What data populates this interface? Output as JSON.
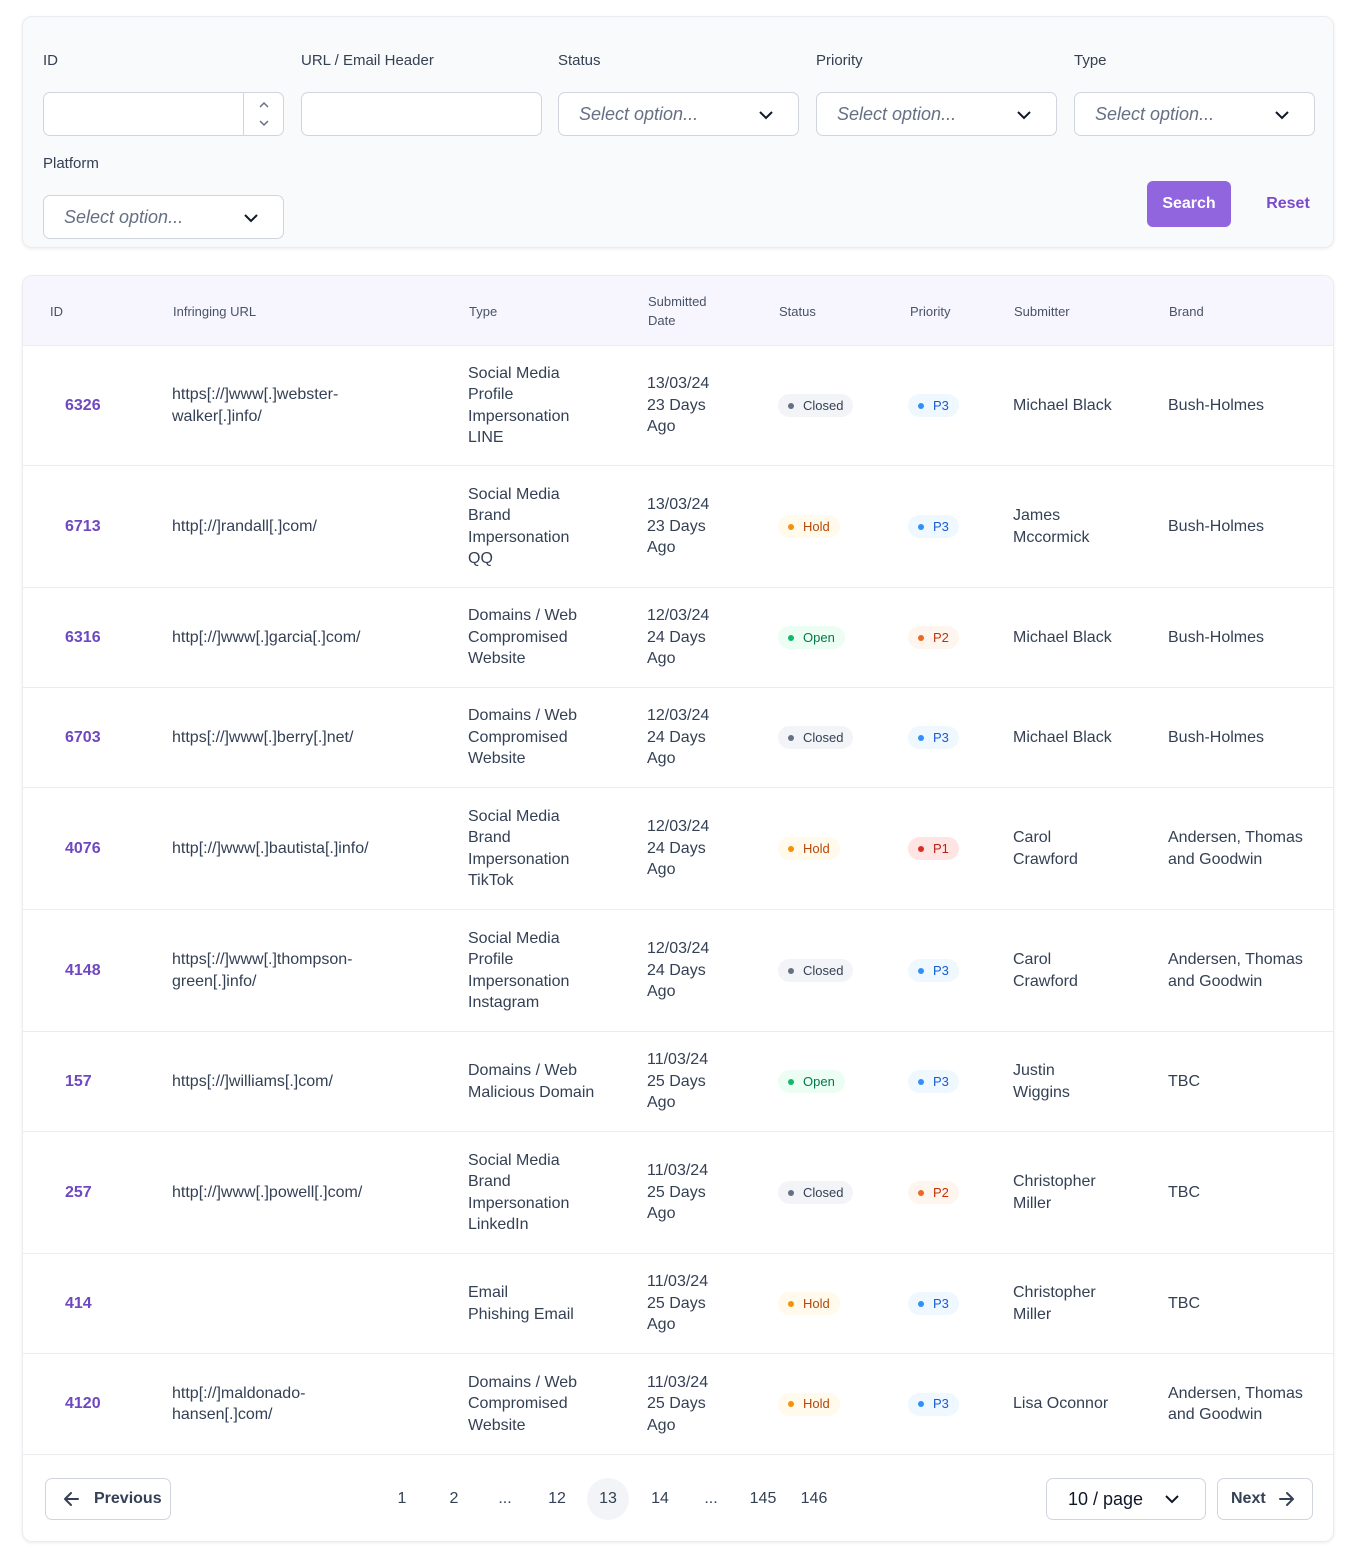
{
  "filters": {
    "id": {
      "label": "ID",
      "value": ""
    },
    "url": {
      "label": "URL / Email Header",
      "value": ""
    },
    "status": {
      "label": "Status",
      "placeholder": "Select option..."
    },
    "priority": {
      "label": "Priority",
      "placeholder": "Select option..."
    },
    "type": {
      "label": "Type",
      "placeholder": "Select option..."
    },
    "platform": {
      "label": "Platform",
      "placeholder": "Select option..."
    },
    "search_label": "Search",
    "reset_label": "Reset"
  },
  "table": {
    "headers": [
      "ID",
      "Infringing URL",
      "Type",
      "Submitted\nDate",
      "Status",
      "Priority",
      "Submitter",
      "Brand"
    ],
    "rows": [
      {
        "id": "6326",
        "url": "https[://]www[.]webster-\nwalker[.]info/",
        "type": "Social Media\nProfile\nImpersonation\nLINE",
        "date": "13/03/24\n23 Days\nAgo",
        "status": "Closed",
        "priority": "P3",
        "submitter": "Michael Black",
        "brand": "Bush-Holmes"
      },
      {
        "id": "6713",
        "url": "http[://]randall[.]com/",
        "type": "Social Media\nBrand\nImpersonation\nQQ",
        "date": "13/03/24\n23 Days\nAgo",
        "status": "Hold",
        "priority": "P3",
        "submitter": "James\nMccormick",
        "brand": "Bush-Holmes"
      },
      {
        "id": "6316",
        "url": "http[://]www[.]garcia[.]com/",
        "type": "Domains / Web\nCompromised\nWebsite",
        "date": "12/03/24\n24 Days\nAgo",
        "status": "Open",
        "priority": "P2",
        "submitter": "Michael Black",
        "brand": "Bush-Holmes"
      },
      {
        "id": "6703",
        "url": "https[://]www[.]berry[.]net/",
        "type": "Domains / Web\nCompromised\nWebsite",
        "date": "12/03/24\n24 Days\nAgo",
        "status": "Closed",
        "priority": "P3",
        "submitter": "Michael Black",
        "brand": "Bush-Holmes"
      },
      {
        "id": "4076",
        "url": "http[://]www[.]bautista[.]info/",
        "type": "Social Media\nBrand\nImpersonation\nTikTok",
        "date": "12/03/24\n24 Days\nAgo",
        "status": "Hold",
        "priority": "P1",
        "submitter": "Carol\nCrawford",
        "brand": "Andersen, Thomas\nand Goodwin"
      },
      {
        "id": "4148",
        "url": "https[://]www[.]thompson-\ngreen[.]info/",
        "type": "Social Media\nProfile\nImpersonation\nInstagram",
        "date": "12/03/24\n24 Days\nAgo",
        "status": "Closed",
        "priority": "P3",
        "submitter": "Carol\nCrawford",
        "brand": "Andersen, Thomas\nand Goodwin"
      },
      {
        "id": "157",
        "url": "https[://]williams[.]com/",
        "type": "Domains / Web\nMalicious Domain",
        "date": "11/03/24\n25 Days\nAgo",
        "status": "Open",
        "priority": "P3",
        "submitter": "Justin\nWiggins",
        "brand": "TBC"
      },
      {
        "id": "257",
        "url": "http[://]www[.]powell[.]com/",
        "type": "Social Media\nBrand\nImpersonation\nLinkedIn",
        "date": "11/03/24\n25 Days\nAgo",
        "status": "Closed",
        "priority": "P2",
        "submitter": "Christopher\nMiller",
        "brand": "TBC"
      },
      {
        "id": "414",
        "url": "",
        "type": "Email\nPhishing Email",
        "date": "11/03/24\n25 Days\nAgo",
        "status": "Hold",
        "priority": "P3",
        "submitter": "Christopher\nMiller",
        "brand": "TBC"
      },
      {
        "id": "4120",
        "url": "http[://]maldonado-\nhansen[.]com/",
        "type": "Domains / Web\nCompromised\nWebsite",
        "date": "11/03/24\n25 Days\nAgo",
        "status": "Hold",
        "priority": "P3",
        "submitter": "Lisa Oconnor",
        "brand": "Andersen, Thomas\nand Goodwin"
      }
    ]
  },
  "pagination": {
    "previous_label": "Previous",
    "next_label": "Next",
    "pages": [
      "1",
      "2",
      "...",
      "12",
      "13",
      "14",
      "...",
      "145",
      "146"
    ],
    "current_page": "13",
    "page_size_label": "10 / page"
  },
  "colors": {
    "accent": "#9165de",
    "status": {
      "Closed": {
        "bg": "#f2f4f7",
        "fg": "#344054",
        "dot": "#667085"
      },
      "Hold": {
        "bg": "#fffaeb",
        "fg": "#b54708",
        "dot": "#f79009"
      },
      "Open": {
        "bg": "#ecfdf3",
        "fg": "#027a48",
        "dot": "#12b76a"
      }
    },
    "priority": {
      "P1": {
        "bg": "#fee4e2",
        "fg": "#b42318",
        "dot": "#d92d20"
      },
      "P2": {
        "bg": "#fef6ee",
        "fg": "#c4320a",
        "dot": "#ef6820"
      },
      "P3": {
        "bg": "#eff8ff",
        "fg": "#175cd3",
        "dot": "#2e90fa"
      }
    }
  }
}
